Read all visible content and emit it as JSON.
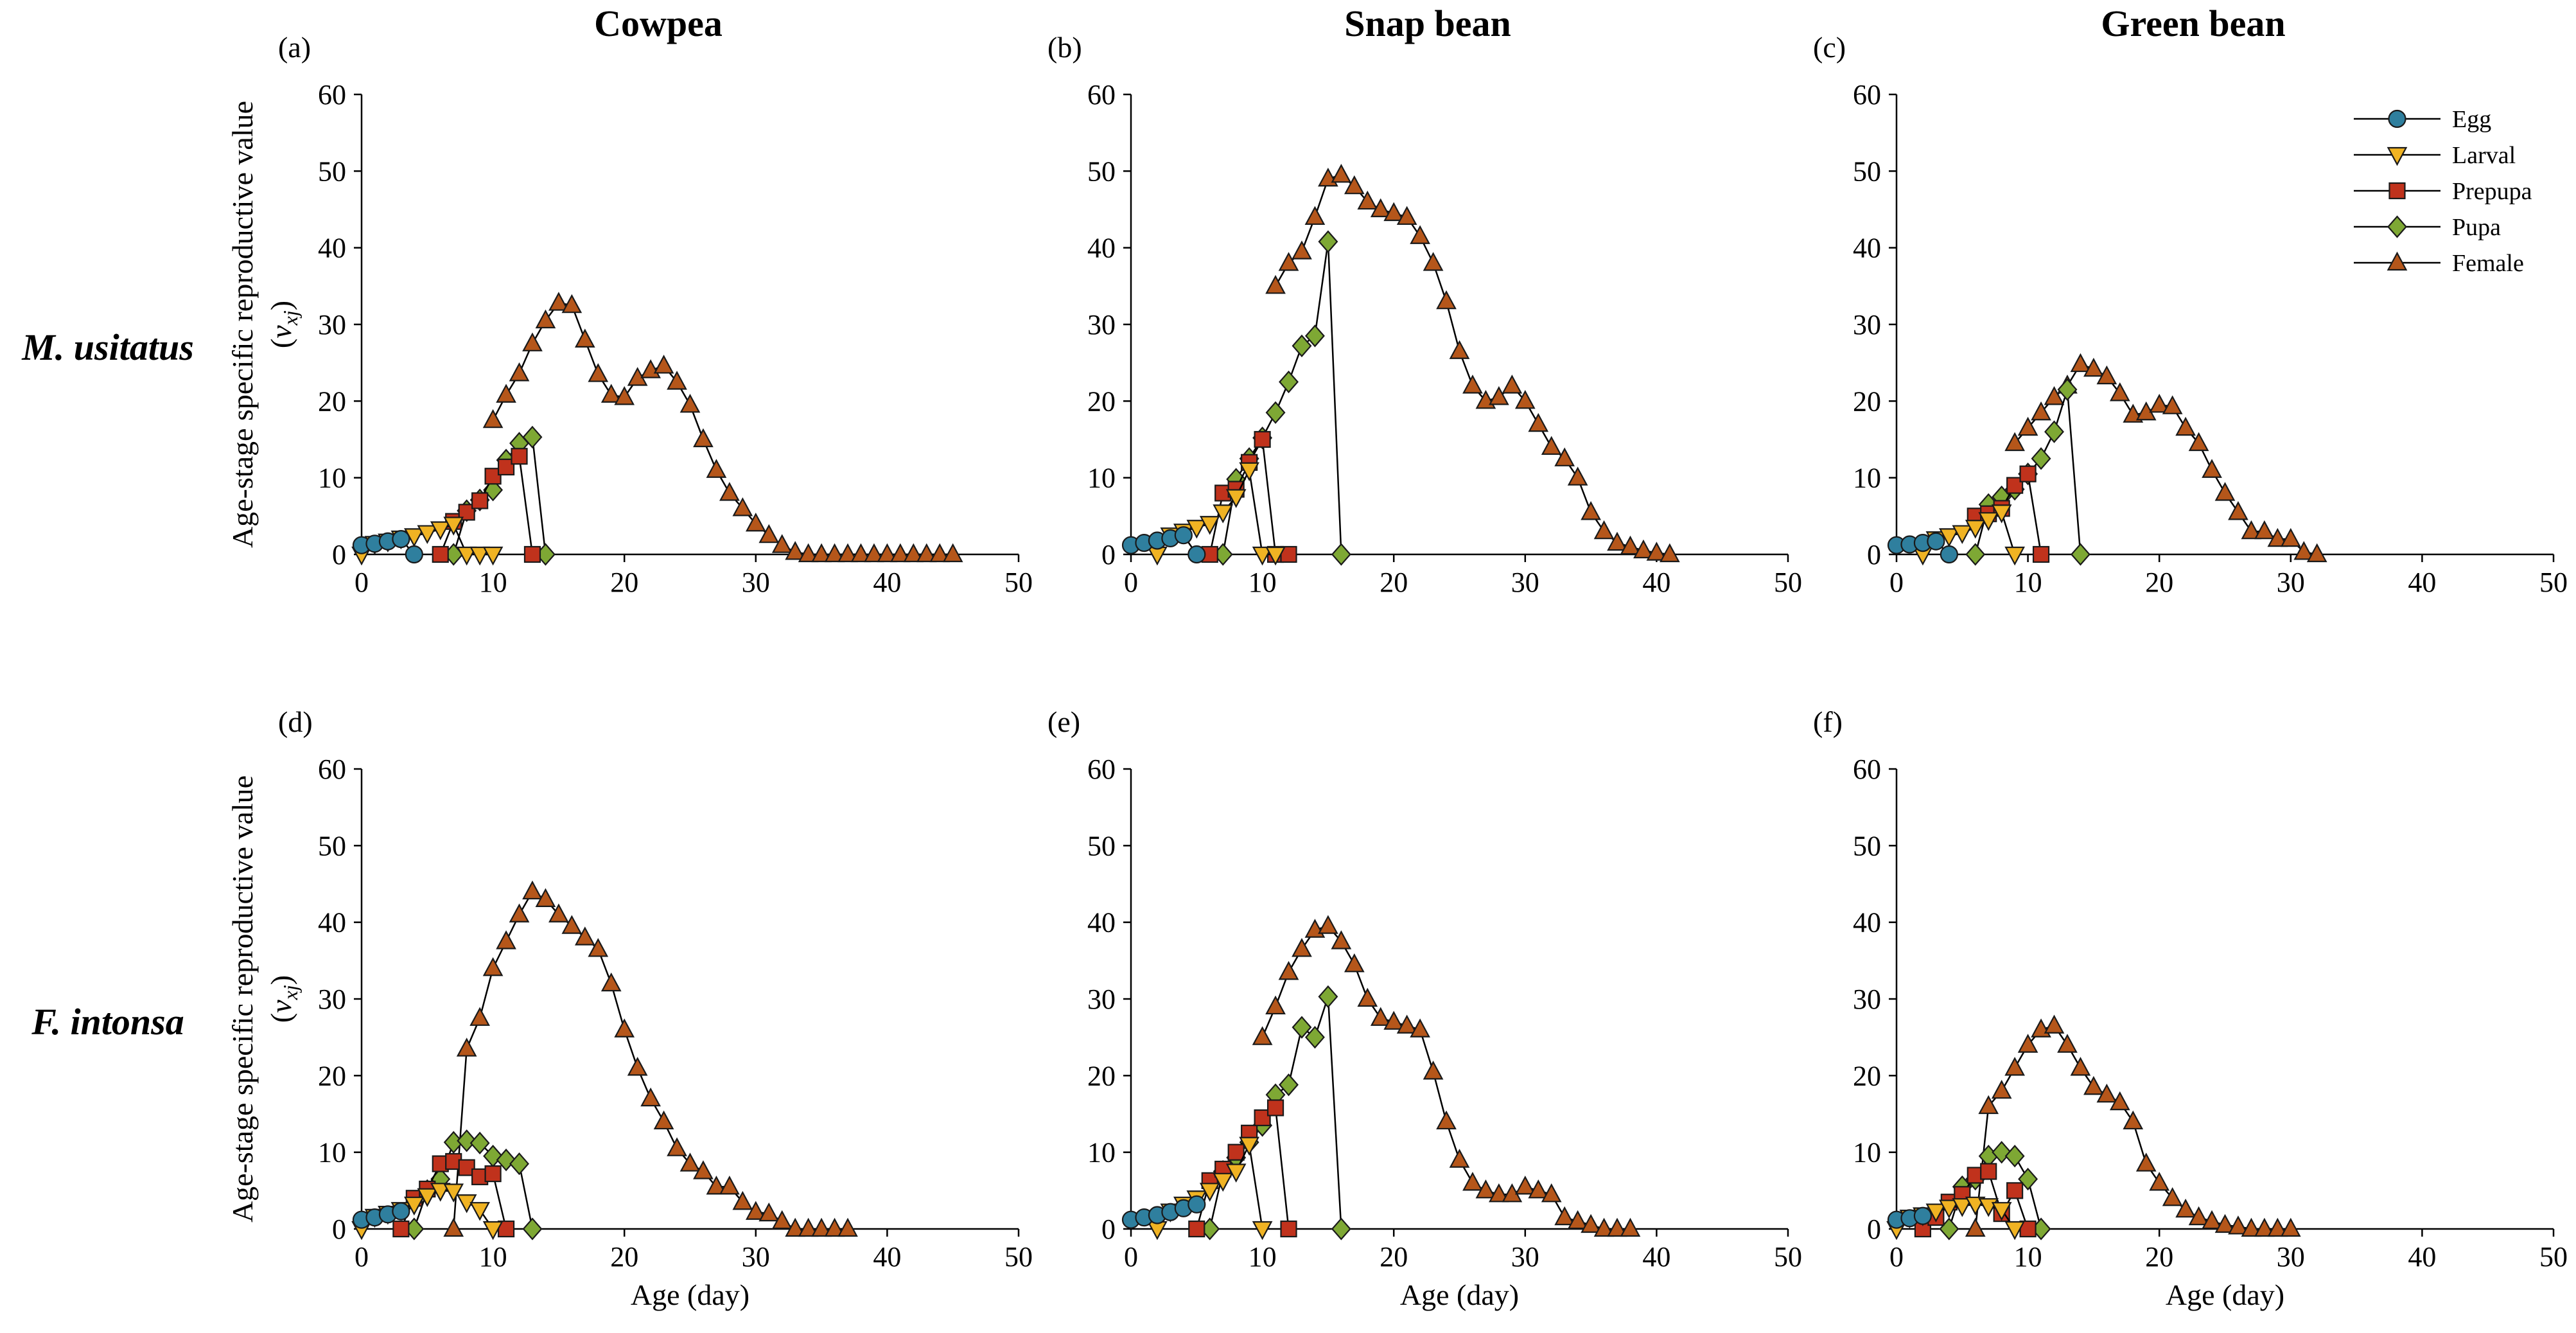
{
  "chart_data": {
    "type": "line",
    "xlabel": "Age (day)",
    "ylabel": "Age-stage specific reproductive value",
    "ylabel_symbol": {
      "open": "(",
      "main": "v",
      "sub": "xj",
      "close": ")"
    },
    "xlim": [
      0,
      50
    ],
    "ylim": [
      0,
      60
    ],
    "xticks": [
      0,
      10,
      20,
      30,
      40,
      50
    ],
    "yticks": [
      0,
      10,
      20,
      30,
      40,
      50,
      60
    ],
    "column_titles": [
      "Cowpea",
      "Snap bean",
      "Green bean"
    ],
    "row_labels": [
      "M. usitatus",
      "F. intonsa"
    ],
    "legend": {
      "placement": "top-right of panel (c)",
      "entries": [
        {
          "name": "Egg",
          "marker": "circle",
          "color": "#2f7f9e"
        },
        {
          "name": "Larval",
          "marker": "triangle-down",
          "color": "#f0b323"
        },
        {
          "name": "Prepupa",
          "marker": "square",
          "color": "#c0321c"
        },
        {
          "name": "Pupa",
          "marker": "diamond",
          "color": "#7ea834"
        },
        {
          "name": "Female",
          "marker": "triangle-up",
          "color": "#b5561a"
        }
      ]
    },
    "panels": [
      {
        "label": "(a)",
        "series": [
          {
            "name": "Egg",
            "x": [
              0,
              1,
              2,
              3,
              4
            ],
            "y": [
              1.2,
              1.4,
              1.7,
              2.0,
              0
            ]
          },
          {
            "name": "Larval",
            "x": [
              0,
              1,
              2,
              3,
              4,
              5,
              6,
              7,
              8,
              9,
              10
            ],
            "y": [
              0,
              1.4,
              1.7,
              2.1,
              2.4,
              2.8,
              3.3,
              3.9,
              0,
              0,
              0
            ]
          },
          {
            "name": "Prepupa",
            "x": [
              6,
              7,
              8,
              9,
              10,
              11,
              12,
              13
            ],
            "y": [
              0,
              4.3,
              5.5,
              7.0,
              10.2,
              11.4,
              12.8,
              0
            ]
          },
          {
            "name": "Pupa",
            "x": [
              7,
              8,
              9,
              10,
              11,
              12,
              13,
              14
            ],
            "y": [
              0,
              5.7,
              7.1,
              8.4,
              12.3,
              14.5,
              15.3,
              0
            ]
          },
          {
            "name": "Female",
            "x": [
              10,
              11,
              12,
              13,
              14,
              15,
              16,
              17,
              18,
              19,
              20,
              21,
              22,
              23,
              24,
              25,
              26,
              27,
              28,
              29,
              30,
              31,
              32,
              33,
              34,
              35,
              36,
              37,
              38,
              39,
              40,
              41,
              42,
              43,
              44,
              45
            ],
            "y": [
              17.5,
              20.8,
              23.6,
              27.5,
              30.5,
              32.8,
              32.5,
              28,
              23.5,
              20.8,
              20.5,
              23,
              24,
              24.6,
              22.5,
              19.5,
              15,
              11,
              8,
              6,
              4,
              2.5,
              1.2,
              0.3,
              0,
              0,
              0,
              0,
              0,
              0,
              0,
              0,
              0,
              0,
              0,
              0
            ]
          }
        ]
      },
      {
        "label": "(b)",
        "series": [
          {
            "name": "Egg",
            "x": [
              0,
              1,
              2,
              3,
              4,
              5
            ],
            "y": [
              1.2,
              1.5,
              1.8,
              2.1,
              2.5,
              0
            ]
          },
          {
            "name": "Larval",
            "x": [
              2,
              3,
              4,
              5,
              6,
              7,
              8,
              9,
              10,
              11
            ],
            "y": [
              0,
              2.5,
              3.0,
              3.5,
              4.0,
              5.5,
              7.5,
              11,
              0,
              0
            ]
          },
          {
            "name": "Prepupa",
            "x": [
              6,
              7,
              8,
              9,
              10,
              11,
              12
            ],
            "y": [
              0,
              8,
              8.5,
              12,
              15,
              0,
              0
            ]
          },
          {
            "name": "Pupa",
            "x": [
              7,
              8,
              9,
              10,
              11,
              12,
              13,
              14,
              15,
              16
            ],
            "y": [
              0,
              9.8,
              12.5,
              15.2,
              18.5,
              22.5,
              27.2,
              28.5,
              40.8,
              0
            ]
          },
          {
            "name": "Female",
            "x": [
              11,
              12,
              13,
              14,
              15,
              16,
              17,
              18,
              19,
              20,
              21,
              22,
              23,
              24,
              25,
              26,
              27,
              28,
              29,
              30,
              31,
              32,
              33,
              34,
              35,
              36,
              37,
              38,
              39,
              40,
              41
            ],
            "y": [
              35,
              38,
              39.5,
              44,
              49,
              49.5,
              48,
              46,
              45,
              44.5,
              44,
              41.5,
              38,
              33,
              26.5,
              22,
              20,
              20.5,
              22,
              20,
              17,
              14,
              12.5,
              10,
              5.5,
              3,
              1.5,
              1,
              0.5,
              0.2,
              0
            ]
          }
        ]
      },
      {
        "label": "(c)",
        "series": [
          {
            "name": "Egg",
            "x": [
              0,
              1,
              2,
              3,
              4
            ],
            "y": [
              1.2,
              1.3,
              1.5,
              1.7,
              0
            ]
          },
          {
            "name": "Larval",
            "x": [
              2,
              3,
              4,
              5,
              6,
              7,
              8,
              9
            ],
            "y": [
              0,
              2.0,
              2.4,
              2.8,
              3.5,
              4.5,
              5.5,
              0
            ]
          },
          {
            "name": "Prepupa",
            "x": [
              6,
              7,
              8,
              9,
              10,
              11
            ],
            "y": [
              5,
              5.3,
              6,
              9,
              10.5,
              0
            ]
          },
          {
            "name": "Pupa",
            "x": [
              6,
              7,
              8,
              9,
              10,
              11,
              12,
              13,
              14
            ],
            "y": [
              0,
              6.5,
              7.5,
              8.5,
              10.5,
              12.5,
              16,
              21.5,
              0
            ]
          },
          {
            "name": "Female",
            "x": [
              9,
              10,
              11,
              12,
              13,
              14,
              15,
              16,
              17,
              18,
              19,
              20,
              21,
              22,
              23,
              24,
              25,
              26,
              27,
              28,
              29,
              30,
              31,
              32
            ],
            "y": [
              14.5,
              16.5,
              18.5,
              20.5,
              22,
              24.8,
              24.2,
              23.2,
              21,
              18.2,
              18.5,
              19.5,
              19.3,
              16.5,
              14.5,
              11,
              8,
              5.5,
              3,
              3,
              2,
              2,
              0.3,
              0
            ]
          }
        ]
      },
      {
        "label": "(d)",
        "series": [
          {
            "name": "Egg",
            "x": [
              0,
              1,
              2,
              3
            ],
            "y": [
              1.2,
              1.5,
              1.9,
              2.3
            ]
          },
          {
            "name": "Larval",
            "x": [
              0,
              1,
              2,
              3,
              4,
              5,
              6,
              7,
              8,
              9,
              10
            ],
            "y": [
              0,
              1.6,
              2.0,
              2.5,
              3.2,
              4.3,
              5.0,
              4.9,
              3.5,
              2.5,
              0
            ]
          },
          {
            "name": "Prepupa",
            "x": [
              3,
              4,
              5,
              6,
              7,
              8,
              9,
              10,
              11
            ],
            "y": [
              0,
              4,
              5.2,
              8.5,
              8.8,
              8,
              6.8,
              7.2,
              0
            ]
          },
          {
            "name": "Pupa",
            "x": [
              4,
              5,
              6,
              7,
              8,
              9,
              10,
              11,
              12,
              13
            ],
            "y": [
              0,
              5,
              6.5,
              11.3,
              11.5,
              11.2,
              9.5,
              9,
              8.5,
              0
            ]
          },
          {
            "name": "Female",
            "x": [
              7,
              8,
              9,
              10,
              11,
              12,
              13,
              14,
              15,
              16,
              17,
              18,
              19,
              20,
              21,
              22,
              23,
              24,
              25,
              26,
              27,
              28,
              29,
              30,
              31,
              32,
              33,
              34,
              35,
              36,
              37
            ],
            "y": [
              0,
              23.5,
              27.5,
              34,
              37.5,
              41,
              44,
              43,
              41,
              39.5,
              38,
              36.5,
              32,
              26,
              21,
              17,
              14,
              10.5,
              8.5,
              7.5,
              5.5,
              5.5,
              3.5,
              2.2,
              2,
              1,
              0,
              0,
              0,
              0,
              0
            ]
          }
        ]
      },
      {
        "label": "(e)",
        "series": [
          {
            "name": "Egg",
            "x": [
              0,
              1,
              2,
              3,
              4,
              5
            ],
            "y": [
              1.2,
              1.5,
              1.8,
              2.2,
              2.7,
              3.2
            ]
          },
          {
            "name": "Larval",
            "x": [
              2,
              3,
              4,
              5,
              6,
              7,
              8,
              9,
              10
            ],
            "y": [
              0,
              2.3,
              3.2,
              4.0,
              5.0,
              6.3,
              7.5,
              11,
              0
            ]
          },
          {
            "name": "Prepupa",
            "x": [
              5,
              6,
              7,
              8,
              9,
              10,
              11,
              12
            ],
            "y": [
              0,
              6.3,
              7.8,
              10,
              12.5,
              14.5,
              15.8,
              0
            ]
          },
          {
            "name": "Pupa",
            "x": [
              6,
              7,
              8,
              9,
              10,
              11,
              12,
              13,
              14,
              15,
              16
            ],
            "y": [
              0,
              7.5,
              9.3,
              11.3,
              13.5,
              17.5,
              18.8,
              26.3,
              25,
              30.3,
              0
            ]
          },
          {
            "name": "Female",
            "x": [
              10,
              11,
              12,
              13,
              14,
              15,
              16,
              17,
              18,
              19,
              20,
              21,
              22,
              23,
              24,
              25,
              26,
              27,
              28,
              29,
              30,
              31,
              32,
              33,
              34,
              35,
              36,
              37,
              38
            ],
            "y": [
              25,
              29,
              33.5,
              36.5,
              39,
              39.5,
              37.5,
              34.5,
              30,
              27.5,
              27,
              26.5,
              26,
              20.5,
              14,
              9,
              6,
              5,
              4.5,
              4.5,
              5.5,
              5,
              4.5,
              1.5,
              1,
              0.5,
              0,
              0,
              0
            ]
          }
        ]
      },
      {
        "label": "(f)",
        "series": [
          {
            "name": "Egg",
            "x": [
              0,
              1,
              2
            ],
            "y": [
              1.2,
              1.4,
              1.7
            ]
          },
          {
            "name": "Larval",
            "x": [
              0,
              1,
              2,
              3,
              4,
              5,
              6,
              7,
              8,
              9
            ],
            "y": [
              0,
              1.5,
              1.8,
              2.3,
              2.8,
              3.0,
              3.2,
              3.0,
              2.5,
              0
            ]
          },
          {
            "name": "Prepupa",
            "x": [
              2,
              3,
              4,
              5,
              6,
              7,
              8,
              9,
              10
            ],
            "y": [
              0,
              1.5,
              3.5,
              4.5,
              7,
              7.5,
              2,
              5,
              0
            ]
          },
          {
            "name": "Pupa",
            "x": [
              4,
              5,
              6,
              7,
              8,
              9,
              10,
              11
            ],
            "y": [
              0,
              5.5,
              6.5,
              9.5,
              10,
              9.5,
              6.5,
              0
            ]
          },
          {
            "name": "Female",
            "x": [
              6,
              7,
              8,
              9,
              10,
              11,
              12,
              13,
              14,
              15,
              16,
              17,
              18,
              19,
              20,
              21,
              22,
              23,
              24,
              25,
              26,
              27,
              28,
              29,
              30
            ],
            "y": [
              0,
              16,
              18,
              21,
              24,
              26,
              26.5,
              24,
              21,
              18.5,
              17.5,
              16.5,
              14,
              8.5,
              6,
              4,
              2.5,
              1.5,
              1,
              0.5,
              0.3,
              0,
              0,
              0,
              0
            ]
          }
        ]
      }
    ]
  }
}
